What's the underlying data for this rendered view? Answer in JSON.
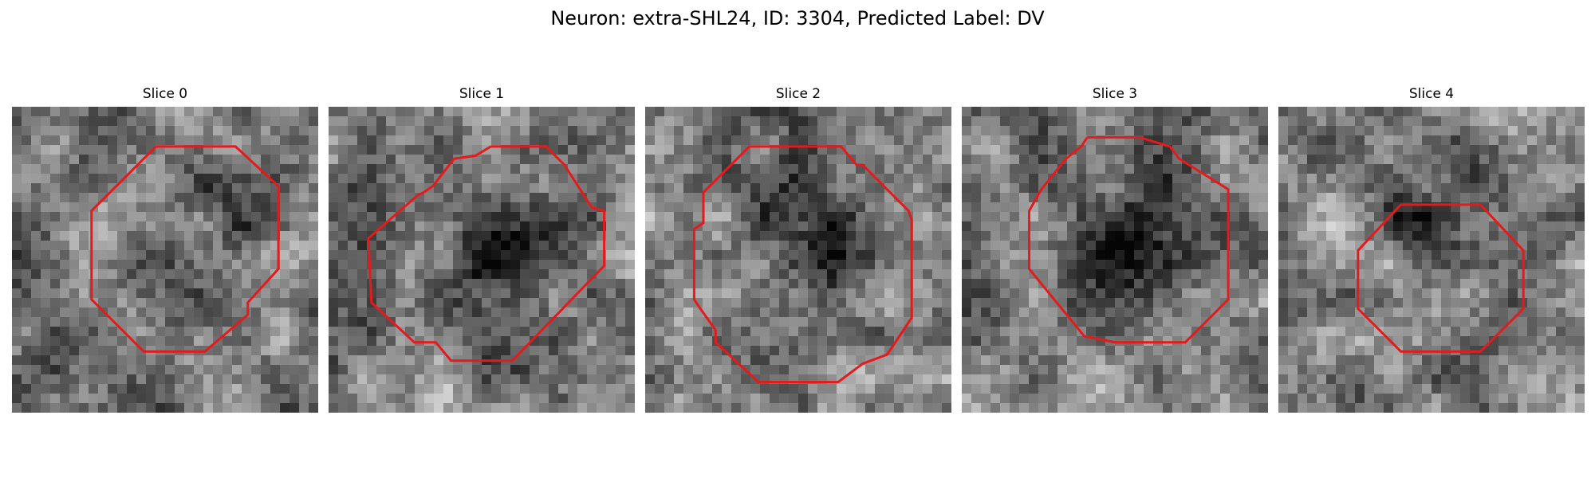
{
  "figure": {
    "title": "Neuron: extra-SHL24, ID: 3304, Predicted Label: DV",
    "contour_color": "#e41a1c"
  },
  "panels": [
    {
      "label": "Slice 0",
      "seed": 11,
      "contour": [
        [
          0.47,
          0.13
        ],
        [
          0.73,
          0.13
        ],
        [
          0.87,
          0.26
        ],
        [
          0.87,
          0.53
        ],
        [
          0.77,
          0.64
        ],
        [
          0.77,
          0.68
        ],
        [
          0.63,
          0.8
        ],
        [
          0.43,
          0.8
        ],
        [
          0.26,
          0.63
        ],
        [
          0.26,
          0.34
        ],
        [
          0.47,
          0.13
        ]
      ],
      "dark_center": [
        0.62,
        0.45
      ],
      "dark_strength": 0.22
    },
    {
      "label": "Slice 1",
      "seed": 23,
      "contour": [
        [
          0.53,
          0.13
        ],
        [
          0.71,
          0.13
        ],
        [
          0.77,
          0.19
        ],
        [
          0.86,
          0.33
        ],
        [
          0.9,
          0.34
        ],
        [
          0.9,
          0.52
        ],
        [
          0.6,
          0.83
        ],
        [
          0.4,
          0.83
        ],
        [
          0.35,
          0.77
        ],
        [
          0.28,
          0.77
        ],
        [
          0.14,
          0.64
        ],
        [
          0.13,
          0.43
        ],
        [
          0.29,
          0.29
        ],
        [
          0.31,
          0.28
        ],
        [
          0.34,
          0.26
        ],
        [
          0.41,
          0.17
        ],
        [
          0.48,
          0.16
        ],
        [
          0.53,
          0.13
        ]
      ],
      "dark_center": [
        0.57,
        0.45
      ],
      "dark_strength": 0.45
    },
    {
      "label": "Slice 2",
      "seed": 37,
      "contour": [
        [
          0.34,
          0.13
        ],
        [
          0.64,
          0.13
        ],
        [
          0.69,
          0.19
        ],
        [
          0.71,
          0.19
        ],
        [
          0.86,
          0.34
        ],
        [
          0.87,
          0.37
        ],
        [
          0.87,
          0.69
        ],
        [
          0.79,
          0.81
        ],
        [
          0.71,
          0.84
        ],
        [
          0.63,
          0.9
        ],
        [
          0.37,
          0.9
        ],
        [
          0.23,
          0.77
        ],
        [
          0.23,
          0.73
        ],
        [
          0.18,
          0.66
        ],
        [
          0.16,
          0.63
        ],
        [
          0.16,
          0.4
        ],
        [
          0.19,
          0.38
        ],
        [
          0.19,
          0.28
        ],
        [
          0.34,
          0.13
        ]
      ],
      "dark_center": [
        0.55,
        0.38
      ],
      "dark_strength": 0.3
    },
    {
      "label": "Slice 3",
      "seed": 53,
      "contour": [
        [
          0.41,
          0.1
        ],
        [
          0.58,
          0.1
        ],
        [
          0.68,
          0.13
        ],
        [
          0.71,
          0.17
        ],
        [
          0.87,
          0.27
        ],
        [
          0.87,
          0.63
        ],
        [
          0.73,
          0.77
        ],
        [
          0.5,
          0.77
        ],
        [
          0.4,
          0.75
        ],
        [
          0.22,
          0.53
        ],
        [
          0.22,
          0.34
        ],
        [
          0.26,
          0.27
        ],
        [
          0.34,
          0.17
        ],
        [
          0.39,
          0.13
        ],
        [
          0.41,
          0.1
        ]
      ],
      "dark_center": [
        0.55,
        0.43
      ],
      "dark_strength": 0.32
    },
    {
      "label": "Slice 4",
      "seed": 71,
      "contour": [
        [
          0.4,
          0.32
        ],
        [
          0.66,
          0.32
        ],
        [
          0.8,
          0.47
        ],
        [
          0.8,
          0.66
        ],
        [
          0.66,
          0.8
        ],
        [
          0.4,
          0.8
        ],
        [
          0.26,
          0.66
        ],
        [
          0.26,
          0.47
        ],
        [
          0.4,
          0.32
        ]
      ],
      "dark_center": [
        0.48,
        0.28
      ],
      "dark_strength": 0.25
    }
  ]
}
